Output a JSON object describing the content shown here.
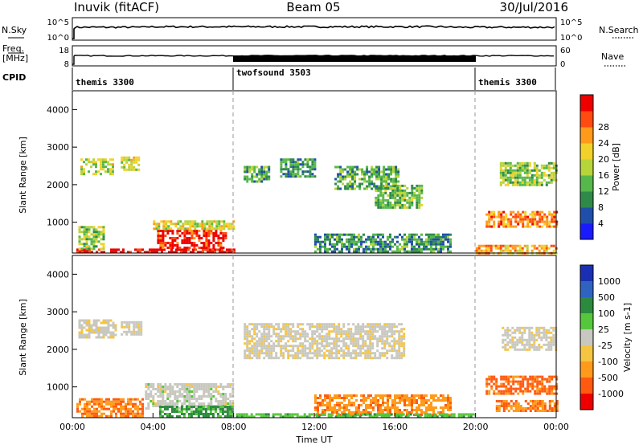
{
  "header": {
    "station": "Inuvik (fitACF)",
    "beam": "Beam 05",
    "date": "30/Jul/2016"
  },
  "panels": {
    "nsky": {
      "left_label": "N.Sky",
      "ticks": [
        "10^5",
        "10^0"
      ],
      "right_label": "N.Search",
      "right_ticks": [
        "10^5",
        "10^0"
      ]
    },
    "freq": {
      "left_label_top": "Freq.",
      "left_label_bottom": "[MHz]",
      "ticks": [
        "18",
        "8"
      ],
      "right_label": "Nave",
      "right_ticks": [
        "60",
        "0"
      ]
    },
    "cpid": {
      "label": "CPID"
    }
  },
  "cpid_modes": [
    {
      "name": "themis 3300",
      "start_hour": 0,
      "end_hour": 8
    },
    {
      "name": "twofsound 3503",
      "start_hour": 8,
      "end_hour": 20
    },
    {
      "name": "themis 3300",
      "start_hour": 20,
      "end_hour": 24
    }
  ],
  "chart_data": [
    {
      "type": "heatmap",
      "name": "power",
      "ylabel": "Slant Range [km]",
      "ylim": [
        180,
        4500
      ],
      "xlim": [
        0,
        24
      ],
      "yticks": [
        "1000",
        "2000",
        "3000",
        "4000"
      ],
      "colorbar": {
        "label": "Power [dB]",
        "ticks": [
          "4",
          "8",
          "12",
          "16",
          "20",
          "24",
          "28"
        ],
        "colors": [
          "#1a1aff",
          "#1f4faa",
          "#2f8a4a",
          "#56b84a",
          "#b7d43a",
          "#f2d12a",
          "#ff9a1a",
          "#ff4a10",
          "#ee0000"
        ]
      },
      "regions": [
        {
          "x0": 0.2,
          "x1": 8.0,
          "y0": 200,
          "y1": 300,
          "level": 0.95
        },
        {
          "x0": 4.2,
          "x1": 7.6,
          "y0": 300,
          "y1": 800,
          "level": 0.92
        },
        {
          "x0": 4.0,
          "x1": 8.0,
          "y0": 800,
          "y1": 1050,
          "level": 0.55
        },
        {
          "x0": 0.3,
          "x1": 1.5,
          "y0": 300,
          "y1": 900,
          "level": 0.45
        },
        {
          "x0": 0.4,
          "x1": 2.0,
          "y0": 2300,
          "y1": 2700,
          "level": 0.5
        },
        {
          "x0": 2.4,
          "x1": 3.3,
          "y0": 2400,
          "y1": 2750,
          "level": 0.55
        },
        {
          "x0": 8.5,
          "x1": 9.8,
          "y0": 2100,
          "y1": 2500,
          "level": 0.35
        },
        {
          "x0": 10.3,
          "x1": 12.0,
          "y0": 2200,
          "y1": 2700,
          "level": 0.3
        },
        {
          "x0": 13.0,
          "x1": 16.2,
          "y0": 1900,
          "y1": 2500,
          "level": 0.35
        },
        {
          "x0": 15.0,
          "x1": 17.3,
          "y0": 1400,
          "y1": 2000,
          "level": 0.4
        },
        {
          "x0": 12.0,
          "x1": 18.8,
          "y0": 200,
          "y1": 700,
          "level": 0.3
        },
        {
          "x0": 20.5,
          "x1": 24.0,
          "y0": 900,
          "y1": 1300,
          "level": 0.75
        },
        {
          "x0": 20.0,
          "x1": 24.0,
          "y0": 200,
          "y1": 400,
          "level": 0.7
        },
        {
          "x0": 21.2,
          "x1": 24.0,
          "y0": 2000,
          "y1": 2600,
          "level": 0.45
        }
      ]
    },
    {
      "type": "heatmap",
      "name": "velocity",
      "ylabel": "Slant Range [km]",
      "xlabel": "Time UT",
      "ylim": [
        180,
        4500
      ],
      "xlim": [
        0,
        24
      ],
      "yticks": [
        "1000",
        "2000",
        "3000",
        "4000"
      ],
      "xticks": [
        "00:00",
        "04:00",
        "08:00",
        "12:00",
        "16:00",
        "20:00",
        "00:00"
      ],
      "colorbar": {
        "label": "Velocity [m s-1]",
        "ticks": [
          "1000",
          "500",
          "100",
          "25",
          "-25",
          "-100",
          "-500",
          "-1000"
        ],
        "colors": [
          "#1b2fb5",
          "#2f63c0",
          "#2c8a3e",
          "#56c63c",
          "#c8c8c0",
          "#f5c542",
          "#ff9a1a",
          "#ff5a10",
          "#ee0000"
        ]
      },
      "regions": [
        {
          "x0": 0.3,
          "x1": 2.2,
          "y0": 2300,
          "y1": 2800,
          "level": -0.05
        },
        {
          "x0": 2.4,
          "x1": 3.4,
          "y0": 2400,
          "y1": 2750,
          "level": -0.05
        },
        {
          "x0": 3.6,
          "x1": 8.0,
          "y0": 400,
          "y1": 1100,
          "level": 0.0
        },
        {
          "x0": 4.3,
          "x1": 8.0,
          "y0": 200,
          "y1": 500,
          "level": 0.45
        },
        {
          "x0": 0.2,
          "x1": 3.5,
          "y0": 200,
          "y1": 700,
          "level": -0.6
        },
        {
          "x0": 8.5,
          "x1": 16.5,
          "y0": 1800,
          "y1": 2700,
          "level": -0.05
        },
        {
          "x0": 12.0,
          "x1": 18.8,
          "y0": 250,
          "y1": 800,
          "level": -0.55
        },
        {
          "x0": 8.0,
          "x1": 20.0,
          "y0": 200,
          "y1": 300,
          "level": 0.3
        },
        {
          "x0": 20.5,
          "x1": 24.0,
          "y0": 800,
          "y1": 1300,
          "level": -0.7
        },
        {
          "x0": 21.0,
          "x1": 24.0,
          "y0": 350,
          "y1": 650,
          "level": -0.6
        },
        {
          "x0": 21.3,
          "x1": 24.0,
          "y0": 2000,
          "y1": 2600,
          "level": -0.05
        }
      ]
    }
  ]
}
